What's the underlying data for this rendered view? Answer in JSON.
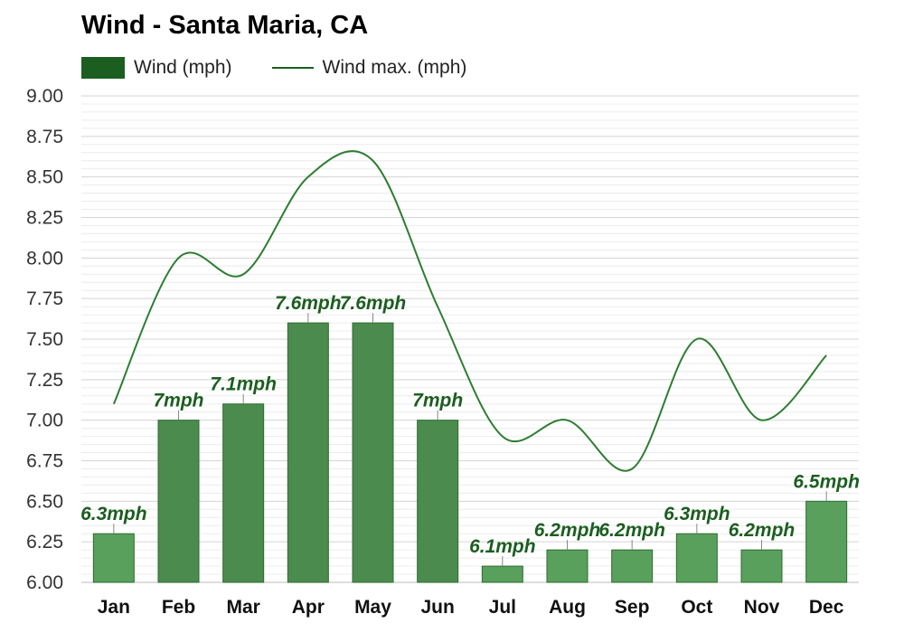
{
  "chart_data": {
    "type": "bar",
    "title": "Wind - Santa Maria, CA",
    "categories": [
      "Jan",
      "Feb",
      "Mar",
      "Apr",
      "May",
      "Jun",
      "Jul",
      "Aug",
      "Sep",
      "Oct",
      "Nov",
      "Dec"
    ],
    "series": [
      {
        "name": "Wind (mph)",
        "type": "bar",
        "values": [
          6.3,
          7.0,
          7.1,
          7.6,
          7.6,
          7.0,
          6.1,
          6.2,
          6.2,
          6.3,
          6.2,
          6.5
        ],
        "labels": [
          "6.3mph",
          "7mph",
          "7.1mph",
          "7.6mph",
          "7.6mph",
          "7mph",
          "6.1mph",
          "6.2mph",
          "6.2mph",
          "6.3mph",
          "6.2mph",
          "6.5mph"
        ]
      },
      {
        "name": "Wind max. (mph)",
        "type": "line",
        "values": [
          7.1,
          8.0,
          7.9,
          8.5,
          8.6,
          7.7,
          6.9,
          7.0,
          6.7,
          7.5,
          7.0,
          7.4
        ]
      }
    ],
    "ylim": [
      6.0,
      9.0
    ],
    "yticks": [
      "6.00",
      "6.25",
      "6.50",
      "6.75",
      "7.00",
      "7.25",
      "7.50",
      "7.75",
      "8.00",
      "8.25",
      "8.50",
      "8.75",
      "9.00"
    ],
    "grid": true,
    "legend_position": "top-left",
    "colors": {
      "bar_summer": "#4b8b4e",
      "bar_winter": "#58a05c",
      "line": "#2e7d32",
      "label": "#1b5e20",
      "legend_swatch": "#1b5e20"
    },
    "summer_months": [
      1,
      2,
      3,
      4,
      5
    ]
  }
}
